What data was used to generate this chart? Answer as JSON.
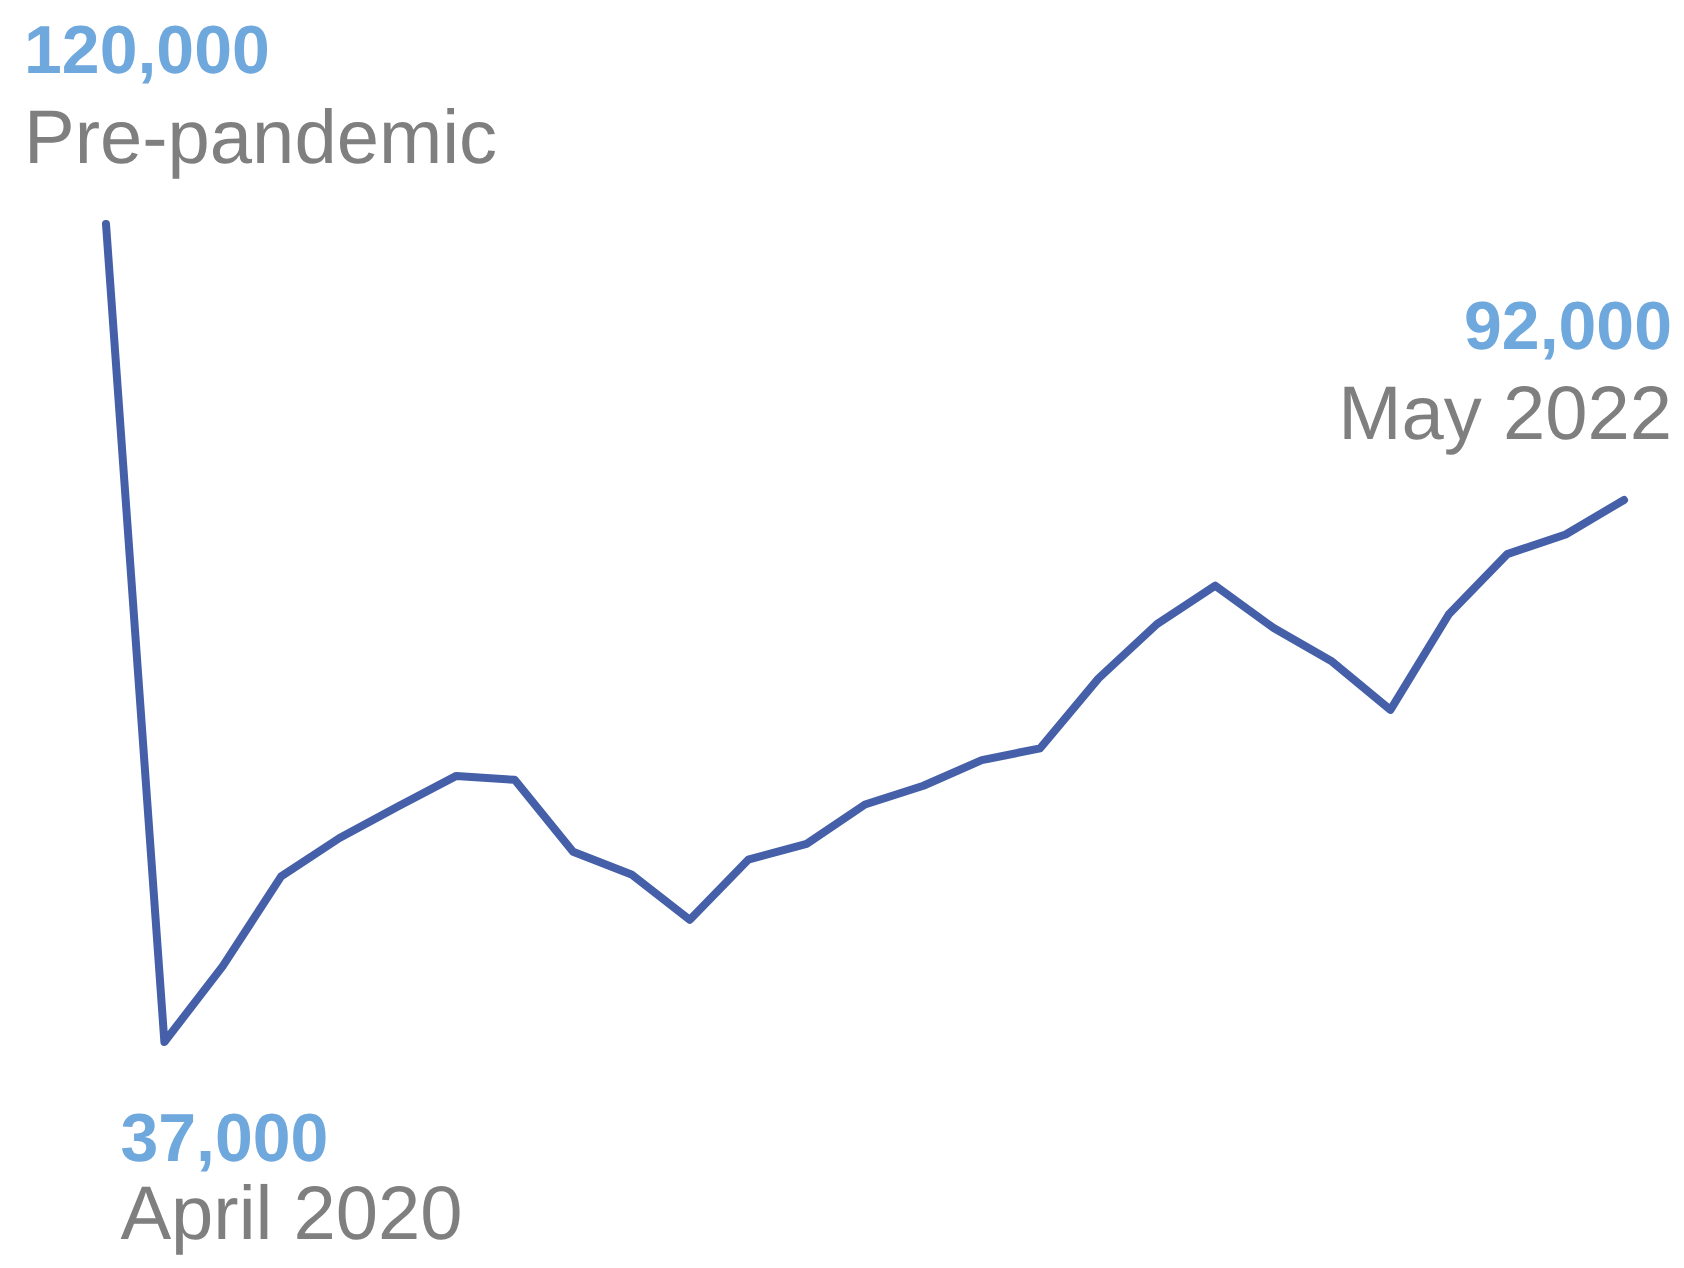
{
  "chart_data": {
    "type": "line",
    "annotations": [
      "Pre-pandemic",
      "April 2020",
      "May 2022"
    ],
    "categories": [
      null,
      null,
      null,
      null,
      null,
      null,
      null,
      null,
      null,
      null,
      null,
      null,
      null,
      null,
      null,
      null,
      null,
      null,
      null,
      null,
      null,
      null,
      null,
      null,
      null,
      null,
      null
    ],
    "series": [
      {
        "color": "#4560a8",
        "values": [
          120000,
          37000,
          44700,
          53800,
          57700,
          60900,
          64000,
          63600,
          56300,
          54000,
          49400,
          55500,
          57100,
          61100,
          63000,
          65600,
          66800,
          73900,
          79400,
          83300,
          79000,
          75600,
          70700,
          80400,
          86500,
          88500,
          92000
        ],
        "value_labels": [
          "120,000",
          "37,000",
          null,
          null,
          null,
          null,
          null,
          null,
          null,
          null,
          null,
          null,
          null,
          null,
          null,
          null,
          null,
          null,
          null,
          null,
          null,
          null,
          null,
          null,
          null,
          null,
          "92,000"
        ]
      }
    ],
    "legend": false
  }
}
